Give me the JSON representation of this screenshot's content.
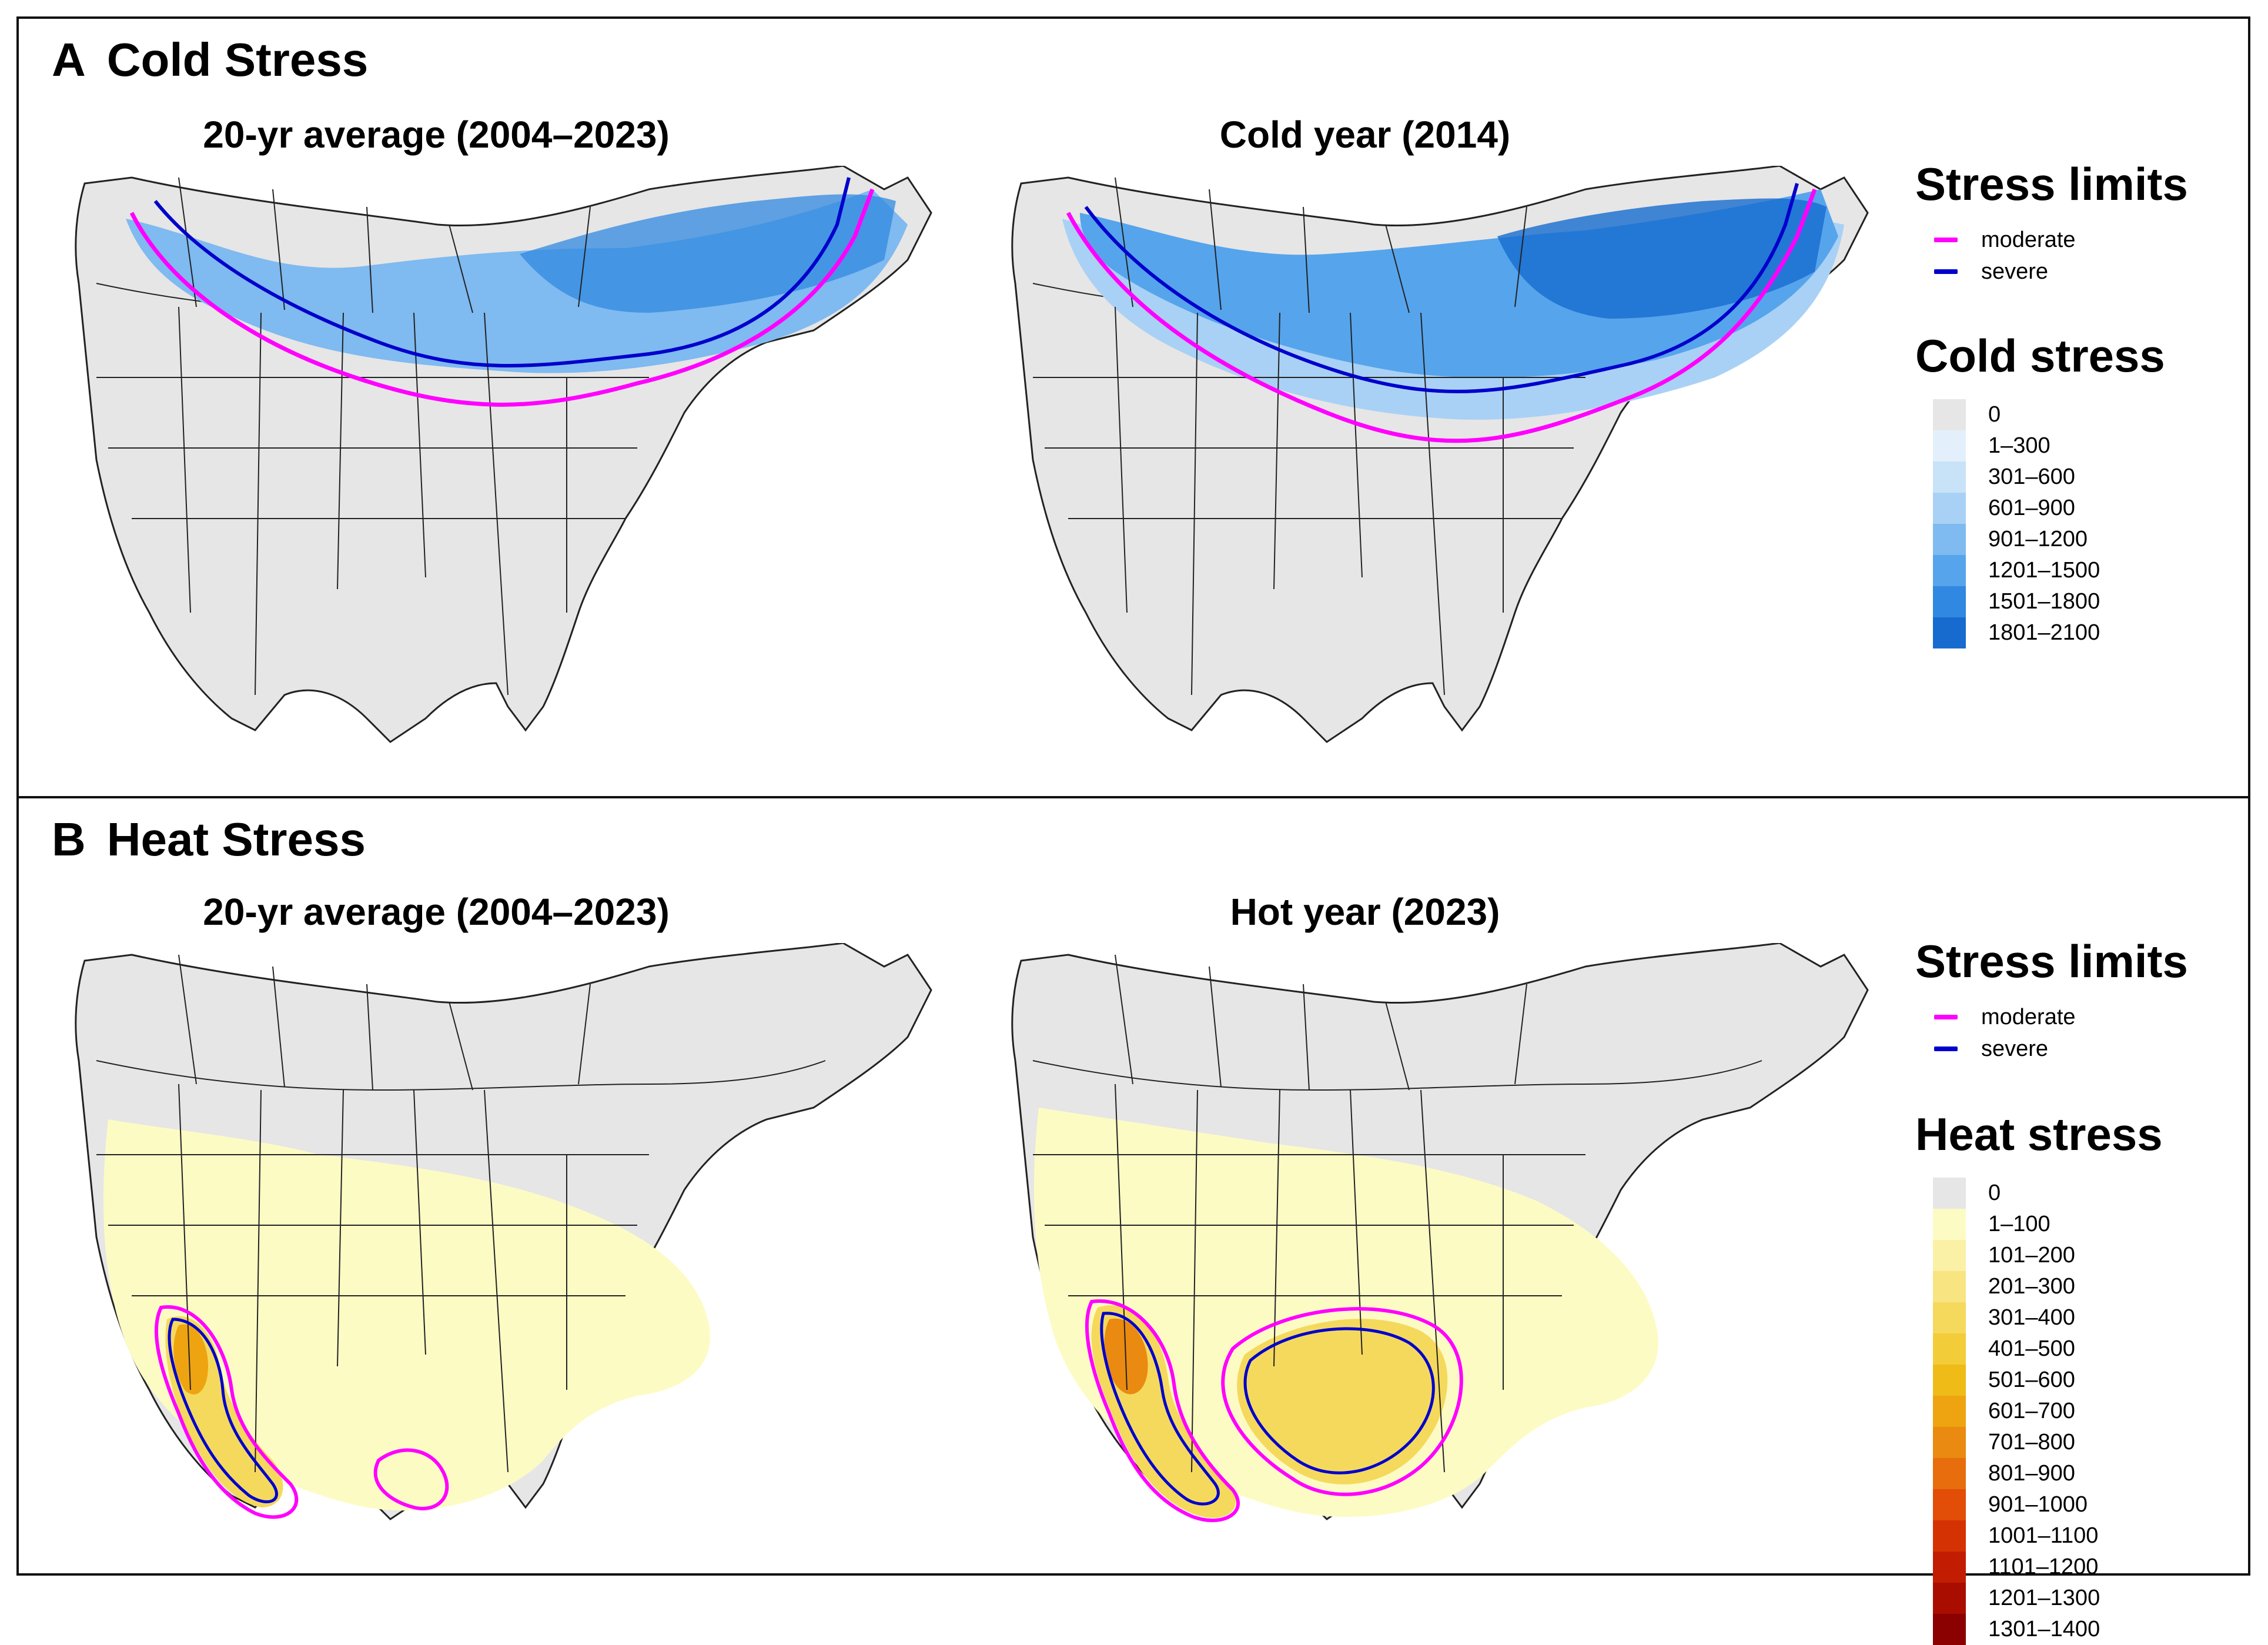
{
  "panels": {
    "a": {
      "letter": "A",
      "title": "Cold Stress",
      "maps": [
        {
          "title": "20-yr average (2004–2023)"
        },
        {
          "title": "Cold year (2014)"
        }
      ],
      "stress_limits": {
        "title": "Stress limits",
        "items": [
          {
            "label": "moderate",
            "color": "#ff00ff"
          },
          {
            "label": "severe",
            "color": "#0000cc"
          }
        ]
      },
      "fill_legend": {
        "title": "Cold stress",
        "items": [
          {
            "label": "0",
            "color": "#e6e6e6"
          },
          {
            "label": "1–300",
            "color": "#e3f0fb"
          },
          {
            "label": "301–600",
            "color": "#c8e2f8"
          },
          {
            "label": "601–900",
            "color": "#a9d1f5"
          },
          {
            "label": "901–1200",
            "color": "#7fbaf0"
          },
          {
            "label": "1201–1500",
            "color": "#56a4ec"
          },
          {
            "label": "1501–1800",
            "color": "#3088e0"
          },
          {
            "label": "1801–2100",
            "color": "#176bcf"
          }
        ]
      }
    },
    "b": {
      "letter": "B",
      "title": "Heat Stress",
      "maps": [
        {
          "title": "20-yr average (2004–2023)"
        },
        {
          "title": "Hot year (2023)"
        }
      ],
      "stress_limits": {
        "title": "Stress limits",
        "items": [
          {
            "label": "moderate",
            "color": "#ff00ff"
          },
          {
            "label": "severe",
            "color": "#0000cc"
          }
        ]
      },
      "fill_legend": {
        "title": "Heat stress",
        "items": [
          {
            "label": "0",
            "color": "#e6e6e6"
          },
          {
            "label": "1–100",
            "color": "#fdfbc4"
          },
          {
            "label": "101–200",
            "color": "#fbf1a6"
          },
          {
            "label": "201–300",
            "color": "#f8e582"
          },
          {
            "label": "301–400",
            "color": "#f5d95d"
          },
          {
            "label": "401–500",
            "color": "#f3cc3a"
          },
          {
            "label": "501–600",
            "color": "#efbb17"
          },
          {
            "label": "601–700",
            "color": "#eea410"
          },
          {
            "label": "701–800",
            "color": "#ea8a10"
          },
          {
            "label": "801–900",
            "color": "#e76d0d"
          },
          {
            "label": "901–1000",
            "color": "#e24d08"
          },
          {
            "label": "1001–1100",
            "color": "#d53204"
          },
          {
            "label": "1101–1200",
            "color": "#c21c02"
          },
          {
            "label": "1201–1300",
            "color": "#a90d00"
          },
          {
            "label": "1301–1400",
            "color": "#8b0000"
          }
        ]
      }
    }
  }
}
